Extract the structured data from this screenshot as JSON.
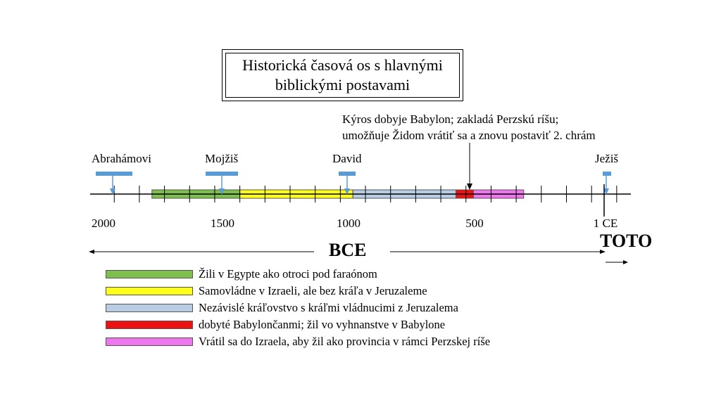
{
  "title": {
    "line1": "Historická časová os s hlavnými",
    "line2": "biblickými postavami"
  },
  "cyrus_note": {
    "line1": "Kýros dobyje Babylon; zakladá Perzskú ríšu;",
    "line2": "umožňuje Židom vrátiť sa a znovu postaviť 2. chrám"
  },
  "figures": [
    {
      "name": "Abrahámovi"
    },
    {
      "name": "Mojžiš"
    },
    {
      "name": "David"
    },
    {
      "name": "Ježiš"
    }
  ],
  "tick_labels": [
    "2000",
    "1500",
    "1000",
    "500",
    "1 CE"
  ],
  "eras": {
    "bce": "BCE",
    "ce": "TOTO"
  },
  "periods": [
    {
      "start": 1800,
      "end": 1450,
      "color": "#7fbf4d"
    },
    {
      "start": 1450,
      "end": 1000,
      "color": "#ffff1a"
    },
    {
      "start": 1000,
      "end": 590,
      "color": "#b8cce4"
    },
    {
      "start": 590,
      "end": 520,
      "color": "#ee1111"
    },
    {
      "start": 520,
      "end": 320,
      "color": "#ee77ee"
    }
  ],
  "legend": [
    {
      "text": "Žili v Egypte ako otroci pod faraónom",
      "color": "#7fbf4d"
    },
    {
      "text": "Samovládne v Izraeli, ale bez kráľa v Jeruzaleme",
      "color": "#ffff1a"
    },
    {
      "text": "Nezávislé kráľovstvo s kráľmi vládnucimi z Jeruzalema",
      "color": "#b8cce4"
    },
    {
      "text": "dobyté Babylončanmi; žil vo vyhnanstve v Babylone",
      "color": "#ee1111"
    },
    {
      "text": "Vrátil sa do Izraela, aby žil ako provincia v rámci Perzskej ríše",
      "color": "#ee77ee"
    }
  ],
  "colors": {
    "marker": "#5b9bd5",
    "axis": "#000000"
  }
}
